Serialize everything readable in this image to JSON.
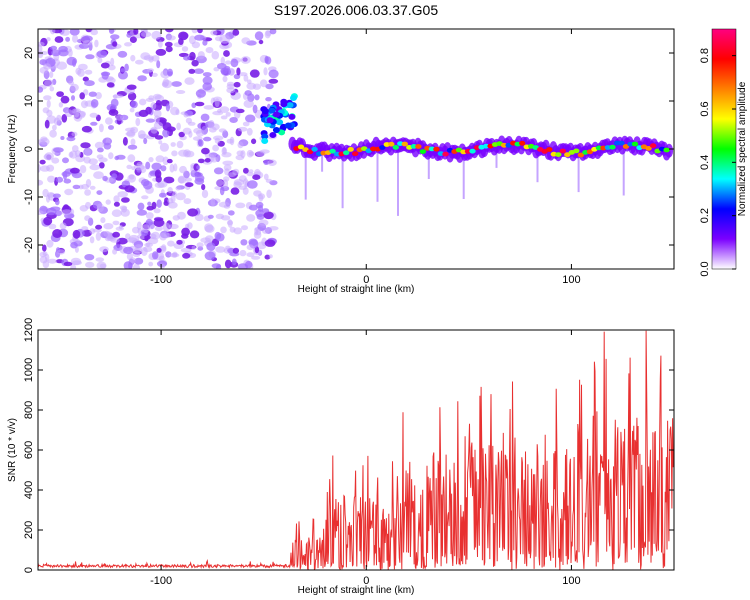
{
  "title": "S197.2026.006.03.37.G05",
  "chart_data": [
    {
      "type": "heatmap",
      "name": "spectrogram",
      "xlabel": "Height of straight line (km)",
      "ylabel": "Frequency (Hz)",
      "xlim": [
        -160,
        150
      ],
      "ylim": [
        -25,
        25
      ],
      "xticks": [
        -100,
        0,
        100
      ],
      "yticks": [
        -20,
        -10,
        0,
        10,
        20
      ],
      "noise_region_x": [
        -160,
        -45
      ],
      "transition": {
        "x": [
          -50,
          -35
        ],
        "freq_at_start": 5,
        "freq_at_end": 8
      },
      "signal_line_freq": 0,
      "colorbar": {
        "label": "Normalized spectral amplitude",
        "range": [
          0.0,
          0.9
        ],
        "ticks": [
          0.0,
          0.2,
          0.4,
          0.6,
          0.8
        ],
        "colors": [
          "#ffffff",
          "#7b00ff",
          "#0000ff",
          "#00ffff",
          "#00ff00",
          "#ffff00",
          "#ff8000",
          "#ff0000",
          "#ff0080"
        ]
      }
    },
    {
      "type": "line",
      "name": "snr",
      "xlabel": "Height of straight line (km)",
      "ylabel": "SNR (10 * v/v)",
      "xlim": [
        -160,
        150
      ],
      "ylim": [
        0,
        1200
      ],
      "xticks": [
        -100,
        0,
        100
      ],
      "yticks": [
        0,
        200,
        400,
        600,
        800,
        1000,
        1200
      ],
      "color": "#e83030",
      "series_segments": [
        {
          "x_range": [
            -160,
            -37
          ],
          "level": 20,
          "peak": 45
        },
        {
          "x_range": [
            -37,
            -20
          ],
          "level": 50,
          "peak": 260
        },
        {
          "x_range": [
            -20,
            15
          ],
          "level": 80,
          "peak": 620
        },
        {
          "x_range": [
            15,
            50
          ],
          "level": 150,
          "peak": 870
        },
        {
          "x_range": [
            50,
            100
          ],
          "level": 220,
          "peak": 1000
        },
        {
          "x_range": [
            100,
            150
          ],
          "level": 250,
          "peak": 1200
        }
      ]
    }
  ]
}
